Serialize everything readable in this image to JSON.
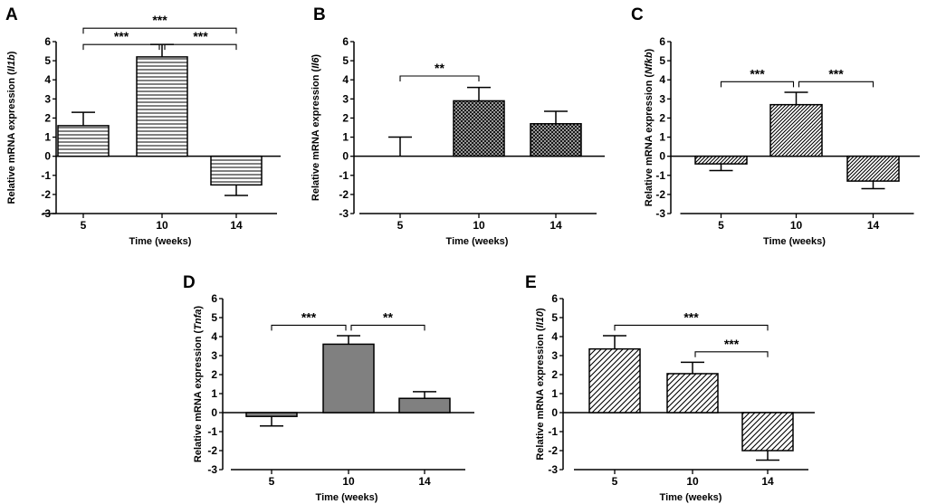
{
  "chart_data": [
    {
      "type": "bar",
      "panel": "A",
      "gene": "Il1b",
      "pattern": "horizontal",
      "color": "#ffffff",
      "categories": [
        "5",
        "10",
        "14"
      ],
      "values": [
        1.6,
        5.2,
        -1.5
      ],
      "errors": [
        0.7,
        0.65,
        0.55
      ],
      "error_direction": [
        "up",
        "up",
        "down"
      ],
      "ylabel_prefix": "Relative mRNA expression (",
      "ylabel_gene": "Il1b",
      "ylabel_suffix": ")",
      "xlabel": "Time (weeks)",
      "ylim": [
        -3,
        6
      ],
      "yticks": [
        -3,
        -2,
        -1,
        0,
        1,
        2,
        3,
        4,
        5,
        6
      ],
      "significance": [
        {
          "from": 0,
          "to": 1,
          "label": "***",
          "level": 5.85
        },
        {
          "from": 1,
          "to": 2,
          "label": "***",
          "level": 5.85
        },
        {
          "from": 0,
          "to": 2,
          "label": "***",
          "level": 6.7
        }
      ]
    },
    {
      "type": "bar",
      "panel": "B",
      "gene": "Il6",
      "pattern": "crosshatch",
      "color": "#ffffff",
      "categories": [
        "5",
        "10",
        "14"
      ],
      "values": [
        0.0,
        2.9,
        1.7
      ],
      "errors": [
        1.0,
        0.7,
        0.65
      ],
      "error_direction": [
        "up",
        "up",
        "up"
      ],
      "ylabel_prefix": "Relative mRNA expression (",
      "ylabel_gene": "Il6",
      "ylabel_suffix": ")",
      "xlabel": "Time (weeks)",
      "ylim": [
        -3,
        6
      ],
      "yticks": [
        -3,
        -2,
        -1,
        0,
        1,
        2,
        3,
        4,
        5,
        6
      ],
      "significance": [
        {
          "from": 0,
          "to": 1,
          "label": "**",
          "level": 4.2
        }
      ]
    },
    {
      "type": "bar",
      "panel": "C",
      "gene": "Nfkb",
      "pattern": "diagonal-dense",
      "color": "#ffffff",
      "categories": [
        "5",
        "10",
        "14"
      ],
      "values": [
        -0.4,
        2.7,
        -1.3
      ],
      "errors": [
        0.35,
        0.65,
        0.4
      ],
      "error_direction": [
        "down",
        "up",
        "down"
      ],
      "ylabel_prefix": "Relative mRNA expression (",
      "ylabel_gene": "Nfkb",
      "ylabel_suffix": ")",
      "xlabel": "Time (weeks)",
      "ylim": [
        -3,
        6
      ],
      "yticks": [
        -3,
        -2,
        -1,
        0,
        1,
        2,
        3,
        4,
        5,
        6
      ],
      "significance": [
        {
          "from": 0,
          "to": 1,
          "label": "***",
          "level": 3.9
        },
        {
          "from": 1,
          "to": 2,
          "label": "***",
          "level": 3.9
        }
      ]
    },
    {
      "type": "bar",
      "panel": "D",
      "gene": "Tnfa",
      "pattern": "solid",
      "color": "#808080",
      "categories": [
        "5",
        "10",
        "14"
      ],
      "values": [
        -0.2,
        3.6,
        0.75
      ],
      "errors": [
        0.5,
        0.45,
        0.35
      ],
      "error_direction": [
        "down",
        "up",
        "up"
      ],
      "ylabel_prefix": "Relative mRNA expression (",
      "ylabel_gene": "Tnfa",
      "ylabel_suffix": ")",
      "xlabel": "Time (weeks)",
      "ylim": [
        -3,
        6
      ],
      "yticks": [
        -3,
        -2,
        -1,
        0,
        1,
        2,
        3,
        4,
        5,
        6
      ],
      "significance": [
        {
          "from": 0,
          "to": 1,
          "label": "***",
          "level": 4.6
        },
        {
          "from": 1,
          "to": 2,
          "label": "**",
          "level": 4.6
        }
      ]
    },
    {
      "type": "bar",
      "panel": "E",
      "gene": "Il10",
      "pattern": "diagonal-wide",
      "color": "#ffffff",
      "categories": [
        "5",
        "10",
        "14"
      ],
      "values": [
        3.35,
        2.05,
        -2.0
      ],
      "errors": [
        0.7,
        0.6,
        0.5
      ],
      "error_direction": [
        "up",
        "up",
        "down"
      ],
      "ylabel_prefix": "Relative mRNA expression (",
      "ylabel_gene": "Il10",
      "ylabel_suffix": ")",
      "xlabel": "Time (weeks)",
      "ylim": [
        -3,
        6
      ],
      "yticks": [
        -3,
        -2,
        -1,
        0,
        1,
        2,
        3,
        4,
        5,
        6
      ],
      "significance": [
        {
          "from": 0,
          "to": 2,
          "label": "***",
          "level": 4.6
        },
        {
          "from": 1,
          "to": 2,
          "label": "***",
          "level": 3.2
        }
      ]
    }
  ]
}
